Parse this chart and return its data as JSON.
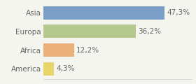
{
  "categories": [
    "America",
    "Africa",
    "Europa",
    "Asia"
  ],
  "values": [
    4.3,
    12.2,
    36.2,
    47.3
  ],
  "labels": [
    "4,3%",
    "12,2%",
    "36,2%",
    "47,3%"
  ],
  "bar_colors": [
    "#e8d46a",
    "#ebb07a",
    "#b5c98e",
    "#7b9ec8"
  ],
  "background_color": "#f5f5f0",
  "xlim": [
    0,
    58
  ],
  "bar_height": 0.72,
  "fontsize": 7.5,
  "label_fontsize": 7.5,
  "label_color": "#666666",
  "tick_color": "#666666"
}
